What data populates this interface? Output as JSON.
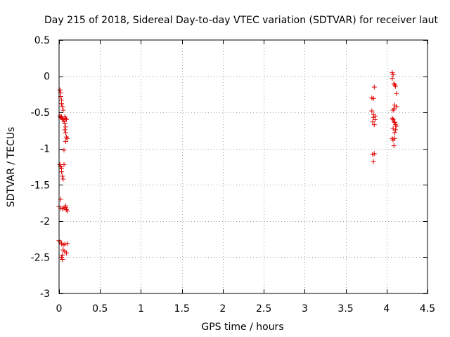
{
  "chart_data": {
    "type": "scatter",
    "title": "Day 215 of 2018, Sidereal Day-to-day VTEC variation (SDTVAR) for receiver laut",
    "xlabel": "GPS time / hours",
    "ylabel": "SDTVAR / TECUs",
    "xlim": [
      0,
      4.5
    ],
    "ylim": [
      -3,
      0.5
    ],
    "xticks": [
      0,
      0.5,
      1,
      1.5,
      2,
      2.5,
      3,
      3.5,
      4,
      4.5
    ],
    "xtick_labels": [
      "0",
      "0.5",
      "1",
      "1.5",
      "2",
      "2.5",
      "3",
      "3.5",
      "4",
      "4.5"
    ],
    "yticks": [
      0.5,
      0,
      -0.5,
      -1,
      -1.5,
      -2,
      -2.5,
      -3
    ],
    "ytick_labels": [
      "0.5",
      "0",
      "-0.5",
      "-1",
      "-1.5",
      "-2",
      "-2.5",
      "-3"
    ],
    "grid": true,
    "marker_color": "#e00000",
    "series": [
      {
        "name": "SDTVAR",
        "points": [
          [
            0.01,
            -0.19
          ],
          [
            0.02,
            -0.23
          ],
          [
            0.02,
            -0.28
          ],
          [
            0.03,
            -0.33
          ],
          [
            0.03,
            -0.38
          ],
          [
            0.04,
            -0.42
          ],
          [
            0.05,
            -0.47
          ],
          [
            0.01,
            -0.55
          ],
          [
            0.02,
            -0.57
          ],
          [
            0.03,
            -0.56
          ],
          [
            0.04,
            -0.58
          ],
          [
            0.05,
            -0.6
          ],
          [
            0.06,
            -0.62
          ],
          [
            0.07,
            -0.56
          ],
          [
            0.08,
            -0.58
          ],
          [
            0.09,
            -0.6
          ],
          [
            0.07,
            -0.65
          ],
          [
            0.08,
            -0.7
          ],
          [
            0.07,
            -0.74
          ],
          [
            0.08,
            -0.78
          ],
          [
            0.09,
            -0.84
          ],
          [
            0.1,
            -0.86
          ],
          [
            0.08,
            -0.9
          ],
          [
            0.06,
            -1.02
          ],
          [
            0.01,
            -1.22
          ],
          [
            0.02,
            -1.25
          ],
          [
            0.03,
            -1.27
          ],
          [
            0.06,
            -1.22
          ],
          [
            0.03,
            -1.32
          ],
          [
            0.04,
            -1.38
          ],
          [
            0.05,
            -1.42
          ],
          [
            0.02,
            -1.7
          ],
          [
            0.0,
            -1.8
          ],
          [
            0.02,
            -1.82
          ],
          [
            0.04,
            -1.83
          ],
          [
            0.06,
            -1.82
          ],
          [
            0.08,
            -1.81
          ],
          [
            0.09,
            -1.84
          ],
          [
            0.1,
            -1.86
          ],
          [
            0.08,
            -1.79
          ],
          [
            0.0,
            -2.27
          ],
          [
            0.01,
            -2.29
          ],
          [
            0.03,
            -2.31
          ],
          [
            0.05,
            -2.33
          ],
          [
            0.07,
            -2.32
          ],
          [
            0.1,
            -2.31
          ],
          [
            0.05,
            -2.4
          ],
          [
            0.07,
            -2.42
          ],
          [
            0.09,
            -2.44
          ],
          [
            0.04,
            -2.47
          ],
          [
            0.03,
            -2.5
          ],
          [
            0.04,
            -2.53
          ],
          [
            3.85,
            -0.15
          ],
          [
            3.82,
            -0.3
          ],
          [
            3.84,
            -0.31
          ],
          [
            3.82,
            -0.48
          ],
          [
            3.84,
            -0.53
          ],
          [
            3.86,
            -0.55
          ],
          [
            3.84,
            -0.57
          ],
          [
            3.86,
            -0.6
          ],
          [
            3.83,
            -0.63
          ],
          [
            3.85,
            -0.67
          ],
          [
            3.83,
            -1.08
          ],
          [
            3.85,
            -1.07
          ],
          [
            3.84,
            -1.18
          ],
          [
            4.07,
            0.05
          ],
          [
            4.08,
            0.02
          ],
          [
            4.07,
            -0.03
          ],
          [
            4.09,
            -0.1
          ],
          [
            4.1,
            -0.12
          ],
          [
            4.11,
            -0.14
          ],
          [
            4.12,
            -0.24
          ],
          [
            4.1,
            -0.4
          ],
          [
            4.12,
            -0.42
          ],
          [
            4.09,
            -0.45
          ],
          [
            4.08,
            -0.47
          ],
          [
            4.07,
            -0.58
          ],
          [
            4.08,
            -0.6
          ],
          [
            4.09,
            -0.62
          ],
          [
            4.1,
            -0.64
          ],
          [
            4.11,
            -0.67
          ],
          [
            4.12,
            -0.69
          ],
          [
            4.08,
            -0.72
          ],
          [
            4.11,
            -0.74
          ],
          [
            4.1,
            -0.78
          ],
          [
            4.07,
            -0.86
          ],
          [
            4.08,
            -0.88
          ],
          [
            4.1,
            -0.86
          ],
          [
            4.09,
            -0.96
          ]
        ]
      }
    ]
  }
}
